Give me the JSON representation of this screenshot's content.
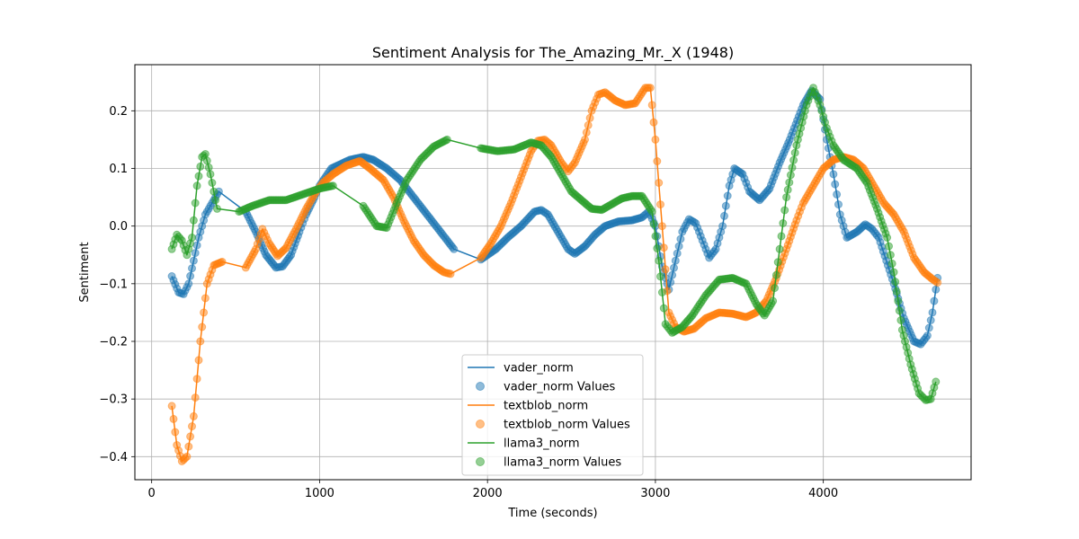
{
  "chart_data": {
    "type": "line",
    "title": "Sentiment Analysis for The_Amazing_Mr._X (1948)",
    "xlabel": "Time (seconds)",
    "ylabel": "Sentiment",
    "xlim": [
      -100,
      4880
    ],
    "ylim": [
      -0.44,
      0.28
    ],
    "xticks": [
      0,
      1000,
      2000,
      3000,
      4000
    ],
    "yticks": [
      -0.4,
      -0.3,
      -0.2,
      -0.1,
      0.0,
      0.1,
      0.2
    ],
    "grid": true,
    "legend_position": "lower-center",
    "series": [
      {
        "name": "vader_norm",
        "scatter_name": "vader_norm Values",
        "color": "#1f77b4",
        "points": [
          [
            120,
            -0.087
          ],
          [
            160,
            -0.115
          ],
          [
            190,
            -0.118
          ],
          [
            220,
            -0.1
          ],
          [
            250,
            -0.06
          ],
          [
            280,
            -0.02
          ],
          [
            320,
            0.02
          ],
          [
            360,
            0.04
          ],
          [
            400,
            0.06
          ],
          [
            560,
            0.025
          ],
          [
            620,
            -0.01
          ],
          [
            680,
            -0.05
          ],
          [
            740,
            -0.072
          ],
          [
            780,
            -0.07
          ],
          [
            830,
            -0.05
          ],
          [
            880,
            -0.01
          ],
          [
            920,
            0.02
          ],
          [
            970,
            0.05
          ],
          [
            1000,
            0.07
          ],
          [
            1070,
            0.1
          ],
          [
            1180,
            0.115
          ],
          [
            1260,
            0.12
          ],
          [
            1320,
            0.115
          ],
          [
            1400,
            0.1
          ],
          [
            1480,
            0.08
          ],
          [
            1560,
            0.05
          ],
          [
            1640,
            0.02
          ],
          [
            1720,
            -0.01
          ],
          [
            1800,
            -0.04
          ],
          [
            1960,
            -0.058
          ],
          [
            2050,
            -0.04
          ],
          [
            2120,
            -0.02
          ],
          [
            2200,
            0.0
          ],
          [
            2280,
            0.025
          ],
          [
            2320,
            0.028
          ],
          [
            2360,
            0.02
          ],
          [
            2420,
            -0.01
          ],
          [
            2480,
            -0.04
          ],
          [
            2520,
            -0.048
          ],
          [
            2580,
            -0.035
          ],
          [
            2640,
            -0.015
          ],
          [
            2700,
            0.0
          ],
          [
            2780,
            0.008
          ],
          [
            2860,
            0.01
          ],
          [
            2920,
            0.015
          ],
          [
            2960,
            0.025
          ],
          [
            3000,
            0.0
          ],
          [
            3040,
            -0.07
          ],
          [
            3080,
            -0.11
          ],
          [
            3120,
            -0.06
          ],
          [
            3160,
            -0.01
          ],
          [
            3200,
            0.012
          ],
          [
            3240,
            0.005
          ],
          [
            3280,
            -0.025
          ],
          [
            3320,
            -0.055
          ],
          [
            3360,
            -0.04
          ],
          [
            3400,
            0.0
          ],
          [
            3440,
            0.07
          ],
          [
            3470,
            0.1
          ],
          [
            3520,
            0.09
          ],
          [
            3560,
            0.06
          ],
          [
            3620,
            0.045
          ],
          [
            3680,
            0.065
          ],
          [
            3740,
            0.11
          ],
          [
            3800,
            0.15
          ],
          [
            3880,
            0.21
          ],
          [
            3930,
            0.235
          ],
          [
            3980,
            0.22
          ],
          [
            4020,
            0.15
          ],
          [
            4060,
            0.09
          ],
          [
            4100,
            0.02
          ],
          [
            4140,
            -0.02
          ],
          [
            4200,
            -0.01
          ],
          [
            4250,
            0.003
          ],
          [
            4290,
            -0.005
          ],
          [
            4330,
            -0.02
          ],
          [
            4420,
            -0.1
          ],
          [
            4480,
            -0.16
          ],
          [
            4540,
            -0.2
          ],
          [
            4580,
            -0.205
          ],
          [
            4620,
            -0.19
          ],
          [
            4650,
            -0.15
          ],
          [
            4680,
            -0.09
          ]
        ]
      },
      {
        "name": "textblob_norm",
        "scatter_name": "textblob_norm Values",
        "color": "#ff7f0e",
        "points": [
          [
            120,
            -0.312
          ],
          [
            150,
            -0.38
          ],
          [
            180,
            -0.408
          ],
          [
            210,
            -0.4
          ],
          [
            250,
            -0.33
          ],
          [
            290,
            -0.2
          ],
          [
            330,
            -0.1
          ],
          [
            370,
            -0.068
          ],
          [
            420,
            -0.062
          ],
          [
            560,
            -0.072
          ],
          [
            620,
            -0.04
          ],
          [
            660,
            -0.005
          ],
          [
            700,
            -0.03
          ],
          [
            750,
            -0.052
          ],
          [
            800,
            -0.038
          ],
          [
            860,
            -0.005
          ],
          [
            920,
            0.03
          ],
          [
            980,
            0.06
          ],
          [
            1020,
            0.075
          ],
          [
            1080,
            0.09
          ],
          [
            1160,
            0.105
          ],
          [
            1240,
            0.113
          ],
          [
            1300,
            0.1
          ],
          [
            1380,
            0.08
          ],
          [
            1440,
            0.05
          ],
          [
            1500,
            0.01
          ],
          [
            1560,
            -0.025
          ],
          [
            1620,
            -0.05
          ],
          [
            1680,
            -0.068
          ],
          [
            1740,
            -0.08
          ],
          [
            1780,
            -0.083
          ],
          [
            1960,
            -0.055
          ],
          [
            2020,
            -0.03
          ],
          [
            2080,
            0.0
          ],
          [
            2140,
            0.04
          ],
          [
            2200,
            0.085
          ],
          [
            2260,
            0.13
          ],
          [
            2300,
            0.148
          ],
          [
            2340,
            0.15
          ],
          [
            2380,
            0.14
          ],
          [
            2440,
            0.11
          ],
          [
            2480,
            0.095
          ],
          [
            2520,
            0.11
          ],
          [
            2580,
            0.15
          ],
          [
            2620,
            0.2
          ],
          [
            2660,
            0.228
          ],
          [
            2700,
            0.232
          ],
          [
            2760,
            0.218
          ],
          [
            2820,
            0.21
          ],
          [
            2880,
            0.213
          ],
          [
            2940,
            0.24
          ],
          [
            2970,
            0.24
          ],
          [
            3000,
            0.15
          ],
          [
            3040,
            0.0
          ],
          [
            3080,
            -0.15
          ],
          [
            3120,
            -0.175
          ],
          [
            3170,
            -0.183
          ],
          [
            3230,
            -0.178
          ],
          [
            3300,
            -0.16
          ],
          [
            3380,
            -0.15
          ],
          [
            3460,
            -0.152
          ],
          [
            3540,
            -0.158
          ],
          [
            3600,
            -0.15
          ],
          [
            3660,
            -0.13
          ],
          [
            3720,
            -0.09
          ],
          [
            3780,
            -0.04
          ],
          [
            3840,
            0.01
          ],
          [
            3880,
            0.04
          ],
          [
            3940,
            0.07
          ],
          [
            4000,
            0.1
          ],
          [
            4060,
            0.115
          ],
          [
            4120,
            0.12
          ],
          [
            4180,
            0.115
          ],
          [
            4240,
            0.1
          ],
          [
            4300,
            0.07
          ],
          [
            4360,
            0.04
          ],
          [
            4420,
            0.02
          ],
          [
            4480,
            -0.01
          ],
          [
            4540,
            -0.055
          ],
          [
            4600,
            -0.08
          ],
          [
            4650,
            -0.092
          ],
          [
            4680,
            -0.098
          ]
        ]
      },
      {
        "name": "llama3_norm",
        "scatter_name": "llama3_norm Values",
        "color": "#2ca02c",
        "points": [
          [
            120,
            -0.04
          ],
          [
            150,
            -0.015
          ],
          [
            180,
            -0.025
          ],
          [
            210,
            -0.05
          ],
          [
            240,
            -0.02
          ],
          [
            270,
            0.07
          ],
          [
            300,
            0.12
          ],
          [
            320,
            0.125
          ],
          [
            350,
            0.09
          ],
          [
            390,
            0.03
          ],
          [
            520,
            0.025
          ],
          [
            600,
            0.035
          ],
          [
            700,
            0.045
          ],
          [
            800,
            0.045
          ],
          [
            900,
            0.055
          ],
          [
            1000,
            0.065
          ],
          [
            1080,
            0.07
          ],
          [
            1260,
            0.035
          ],
          [
            1340,
            0.0
          ],
          [
            1400,
            -0.003
          ],
          [
            1460,
            0.04
          ],
          [
            1520,
            0.08
          ],
          [
            1600,
            0.115
          ],
          [
            1680,
            0.138
          ],
          [
            1760,
            0.15
          ],
          [
            1960,
            0.135
          ],
          [
            2060,
            0.13
          ],
          [
            2160,
            0.133
          ],
          [
            2260,
            0.145
          ],
          [
            2320,
            0.14
          ],
          [
            2380,
            0.12
          ],
          [
            2440,
            0.09
          ],
          [
            2500,
            0.06
          ],
          [
            2560,
            0.045
          ],
          [
            2620,
            0.03
          ],
          [
            2680,
            0.028
          ],
          [
            2740,
            0.038
          ],
          [
            2800,
            0.048
          ],
          [
            2860,
            0.052
          ],
          [
            2920,
            0.052
          ],
          [
            2980,
            0.025
          ],
          [
            3020,
            -0.06
          ],
          [
            3060,
            -0.17
          ],
          [
            3100,
            -0.185
          ],
          [
            3160,
            -0.175
          ],
          [
            3220,
            -0.155
          ],
          [
            3300,
            -0.12
          ],
          [
            3380,
            -0.093
          ],
          [
            3460,
            -0.09
          ],
          [
            3540,
            -0.1
          ],
          [
            3600,
            -0.135
          ],
          [
            3650,
            -0.155
          ],
          [
            3700,
            -0.13
          ],
          [
            3740,
            -0.04
          ],
          [
            3780,
            0.05
          ],
          [
            3840,
            0.14
          ],
          [
            3900,
            0.21
          ],
          [
            3940,
            0.24
          ],
          [
            3980,
            0.21
          ],
          [
            4020,
            0.17
          ],
          [
            4060,
            0.14
          ],
          [
            4120,
            0.115
          ],
          [
            4200,
            0.1
          ],
          [
            4260,
            0.075
          ],
          [
            4320,
            0.03
          ],
          [
            4380,
            -0.02
          ],
          [
            4420,
            -0.08
          ],
          [
            4470,
            -0.18
          ],
          [
            4520,
            -0.24
          ],
          [
            4570,
            -0.29
          ],
          [
            4610,
            -0.302
          ],
          [
            4640,
            -0.3
          ],
          [
            4670,
            -0.27
          ]
        ]
      }
    ]
  }
}
